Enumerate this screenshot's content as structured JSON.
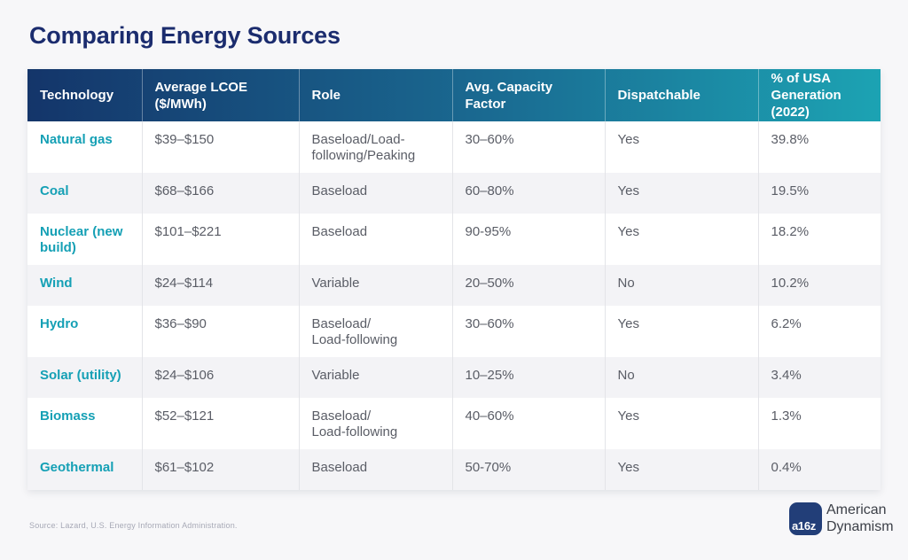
{
  "page": {
    "title": "Comparing Energy Sources",
    "source_note": "Source: Lazard, U.S. Energy Information Administration."
  },
  "colors": {
    "background": "#f7f7f9",
    "title_navy": "#1b2c6e",
    "header_gradient_start": "#14356a",
    "header_gradient_end": "#1ca3b3",
    "technology_teal": "#15a0b5",
    "body_text": "#5a5d66",
    "row_stripe": "#f3f3f6",
    "logo_navy": "#223e78"
  },
  "chart_data": {
    "type": "table",
    "title": "Comparing Energy Sources",
    "columns": [
      "Technology",
      "Average LCOE ($/MWh)",
      "Role",
      "Avg. Capacity Factor",
      "Dispatchable",
      "% of USA Generation (2022)"
    ],
    "rows": [
      [
        "Natural gas",
        "$39–$150",
        "Baseload/Load-\nfollowing/Peaking",
        "30–60%",
        "Yes",
        "39.8%"
      ],
      [
        "Coal",
        "$68–$166",
        "Baseload",
        "60–80%",
        "Yes",
        "19.5%"
      ],
      [
        "Nuclear (new build)",
        "$101–$221",
        "Baseload",
        "90-95%",
        "Yes",
        "18.2%"
      ],
      [
        "Wind",
        "$24–$114",
        "Variable",
        "20–50%",
        "No",
        "10.2%"
      ],
      [
        "Hydro",
        "$36–$90",
        "Baseload/\nLoad-following",
        "30–60%",
        "Yes",
        "6.2%"
      ],
      [
        "Solar (utility)",
        "$24–$106",
        "Variable",
        "10–25%",
        "No",
        "3.4%"
      ],
      [
        "Biomass",
        "$52–$121",
        "Baseload/\nLoad-following",
        "40–60%",
        "Yes",
        "1.3%"
      ],
      [
        "Geothermal",
        "$61–$102",
        "Baseload",
        "50-70%",
        "Yes",
        "0.4%"
      ]
    ]
  },
  "logo": {
    "mark": "a16z",
    "name_line1": "American",
    "name_line2": "Dynamism"
  }
}
